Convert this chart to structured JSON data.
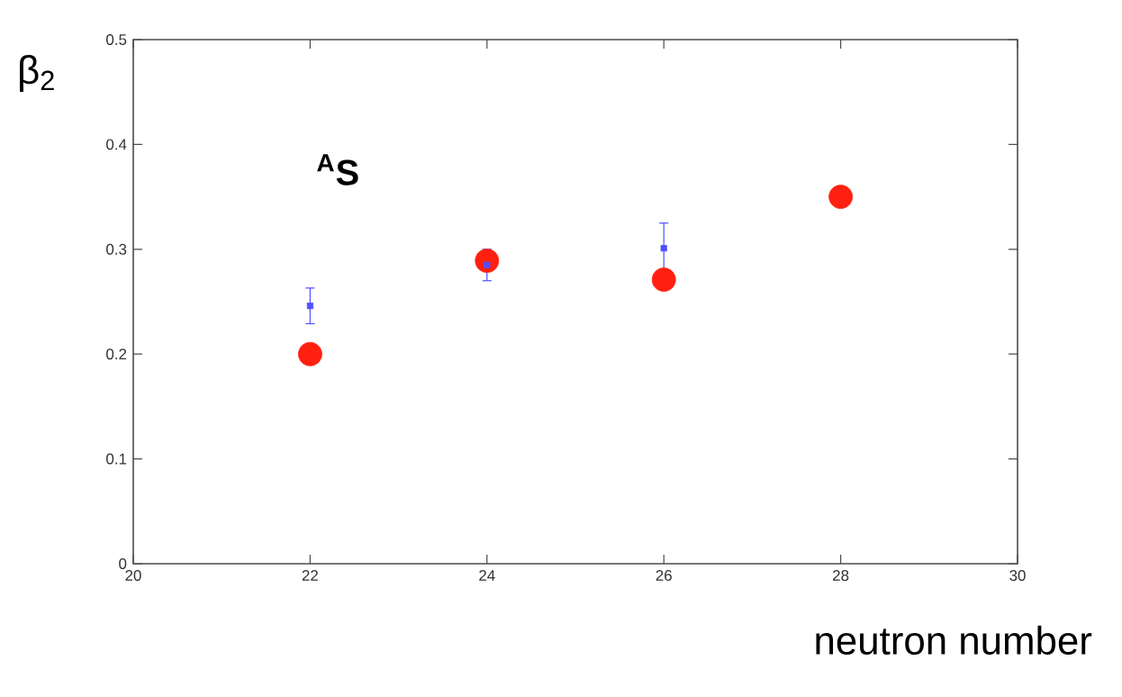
{
  "chart_data": {
    "type": "scatter",
    "xlabel": "neutron number",
    "ylabel": "β$_{2}$",
    "annotations": [
      "$^{A}$S"
    ],
    "xlim": [
      20,
      30
    ],
    "xticks": [
      20,
      22,
      24,
      26,
      28,
      30
    ],
    "ylim": [
      0,
      0.5
    ],
    "yticks": [
      0,
      0.1,
      0.2,
      0.3,
      0.4,
      0.5
    ],
    "grid": false,
    "series": [
      {
        "color": "#ff2010",
        "marker": "circle",
        "x": [
          22,
          24,
          26,
          28
        ],
        "values": [
          0.2,
          0.289,
          0.271,
          0.35
        ]
      },
      {
        "color": "#5050ff",
        "marker": "square",
        "x": [
          22,
          24,
          26
        ],
        "values": [
          0.246,
          0.285,
          0.301
        ],
        "errors": [
          0.017,
          0.015,
          0.024
        ]
      }
    ]
  }
}
